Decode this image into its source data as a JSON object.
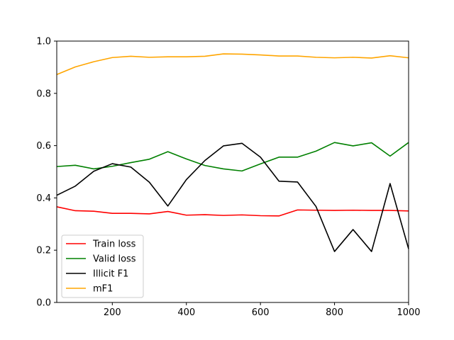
{
  "chart_data": {
    "type": "line",
    "title": "",
    "xlabel": "",
    "ylabel": "",
    "xlim": [
      50,
      1000
    ],
    "ylim": [
      0.0,
      1.0
    ],
    "xticks": [
      200,
      400,
      600,
      800,
      1000
    ],
    "yticks": [
      0.0,
      0.2,
      0.4,
      0.6,
      0.8,
      1.0
    ],
    "xtick_labels": [
      "200",
      "400",
      "600",
      "800",
      "1000"
    ],
    "ytick_labels": [
      "0.0",
      "0.2",
      "0.4",
      "0.6",
      "0.8",
      "1.0"
    ],
    "grid": false,
    "legend_position": "lower-left",
    "x": [
      50,
      100,
      150,
      200,
      250,
      300,
      350,
      400,
      450,
      500,
      550,
      600,
      650,
      700,
      750,
      800,
      850,
      900,
      950,
      1000
    ],
    "series": [
      {
        "name": "Train loss",
        "color": "#ff0000",
        "values": [
          0.366,
          0.351,
          0.349,
          0.341,
          0.341,
          0.339,
          0.348,
          0.334,
          0.336,
          0.333,
          0.335,
          0.332,
          0.331,
          0.354,
          0.353,
          0.352,
          0.353,
          0.352,
          0.352,
          0.35
        ]
      },
      {
        "name": "Valid loss",
        "color": "#008000",
        "values": [
          0.52,
          0.525,
          0.511,
          0.521,
          0.535,
          0.548,
          0.577,
          0.549,
          0.524,
          0.511,
          0.503,
          0.53,
          0.556,
          0.556,
          0.579,
          0.612,
          0.599,
          0.611,
          0.56,
          0.612
        ]
      },
      {
        "name": "Illicit F1",
        "color": "#000000",
        "values": [
          0.41,
          0.445,
          0.502,
          0.531,
          0.518,
          0.46,
          0.369,
          0.47,
          0.543,
          0.599,
          0.609,
          0.556,
          0.464,
          0.461,
          0.367,
          0.195,
          0.279,
          0.195,
          0.455,
          0.205
        ]
      },
      {
        "name": "mF1",
        "color": "#ffa500",
        "values": [
          0.872,
          0.901,
          0.921,
          0.937,
          0.942,
          0.938,
          0.94,
          0.94,
          0.942,
          0.951,
          0.95,
          0.947,
          0.943,
          0.943,
          0.938,
          0.936,
          0.938,
          0.935,
          0.944,
          0.936
        ]
      }
    ]
  }
}
